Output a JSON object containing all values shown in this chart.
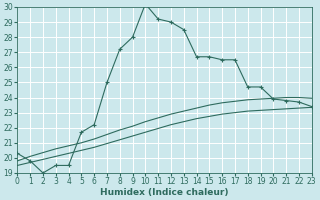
{
  "xlabel": "Humidex (Indice chaleur)",
  "background_color": "#cce8ec",
  "grid_color": "#ffffff",
  "line_color": "#2e6b5e",
  "xmin": 0,
  "xmax": 23,
  "ymin": 19,
  "ymax": 30,
  "x_main": [
    0,
    1,
    2,
    3,
    4,
    5,
    6,
    7,
    8,
    9,
    10,
    11,
    12,
    13,
    14,
    15,
    16,
    17,
    18,
    19,
    20,
    21,
    22,
    23
  ],
  "y_main": [
    20.3,
    19.8,
    19.0,
    19.5,
    19.5,
    21.7,
    22.2,
    25.0,
    27.2,
    28.0,
    30.2,
    29.2,
    29.0,
    28.5,
    26.7,
    26.7,
    26.5,
    26.5,
    24.7,
    24.7,
    23.9,
    23.8,
    23.7,
    23.4
  ],
  "x_curve": [
    0,
    1,
    2,
    3,
    4,
    5,
    6,
    7,
    8,
    9,
    10,
    11,
    12,
    13,
    14,
    15,
    16,
    17,
    18,
    19,
    20,
    21,
    22,
    23
  ],
  "y_curve2": [
    19.5,
    19.7,
    19.9,
    20.1,
    20.3,
    20.5,
    20.7,
    20.95,
    21.2,
    21.45,
    21.7,
    21.95,
    22.2,
    22.4,
    22.6,
    22.75,
    22.9,
    23.0,
    23.1,
    23.15,
    23.2,
    23.25,
    23.3,
    23.35
  ],
  "y_curve3": [
    19.8,
    20.1,
    20.35,
    20.6,
    20.8,
    21.0,
    21.25,
    21.55,
    21.85,
    22.1,
    22.4,
    22.65,
    22.9,
    23.1,
    23.3,
    23.5,
    23.65,
    23.75,
    23.85,
    23.9,
    23.95,
    24.0,
    24.0,
    23.95
  ],
  "tick_fontsize": 5.5,
  "label_fontsize": 6.5
}
